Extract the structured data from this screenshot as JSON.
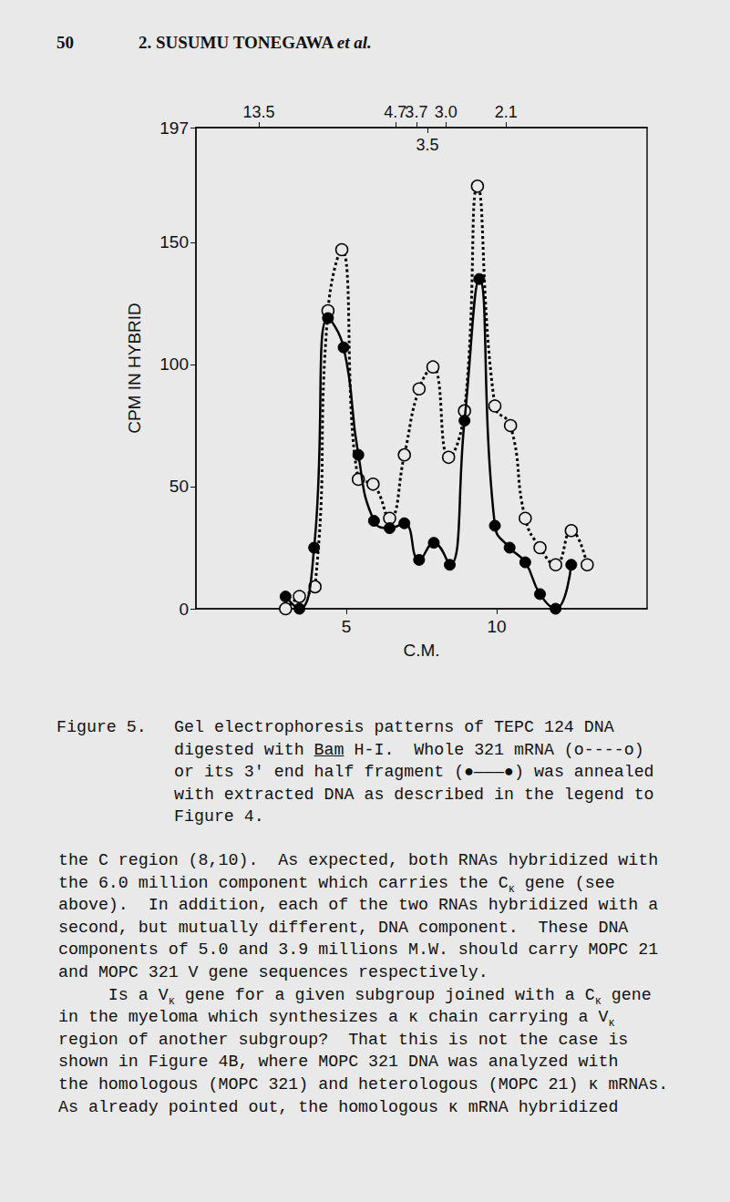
{
  "header": {
    "page": "50",
    "running_head": "2. SUSUMU TONEGAWA",
    "running_head_italic": "et al."
  },
  "chart_data": {
    "type": "line",
    "x_label": "C.M.",
    "y_label": "CPM IN HYBRID",
    "xlim": [
      0,
      15
    ],
    "xticks": [
      5,
      10
    ],
    "ylim": [
      0,
      197
    ],
    "yticks": [
      0,
      50,
      100,
      150
    ],
    "x2ticks": [
      {
        "value": 2.09,
        "label": "13.5"
      },
      {
        "value": 6.63,
        "label": "4.7"
      },
      {
        "value": 7.33,
        "label": "3.7"
      },
      {
        "value": 8.31,
        "label": "3.0"
      },
      {
        "value": 10.31,
        "label": "2.1"
      }
    ],
    "x2ticks_inner": [
      {
        "value": 7.7,
        "label": "3.5"
      }
    ],
    "grid": false,
    "series": [
      {
        "name": "Whole 321 mRNA",
        "color": "#000000",
        "marker": "open_circle",
        "line_style": "dotted",
        "x": [
          2.98,
          3.44,
          3.96,
          4.39,
          4.85,
          5.4,
          5.89,
          6.44,
          6.93,
          7.42,
          7.88,
          8.4,
          8.93,
          9.36,
          9.94,
          10.46,
          10.95,
          11.44,
          11.96,
          12.48,
          13.01
        ],
        "values": [
          0,
          5,
          9,
          122,
          147,
          53,
          51,
          37,
          63,
          90,
          99,
          62,
          81,
          173,
          83,
          75,
          37,
          25,
          18,
          32,
          18
        ]
      },
      {
        "name": "3' end half fragment",
        "color": "#000000",
        "marker": "filled_circle",
        "line_style": "solid",
        "x": [
          2.98,
          3.44,
          3.93,
          4.39,
          4.91,
          5.4,
          5.92,
          6.44,
          6.93,
          7.42,
          7.91,
          8.44,
          8.93,
          9.42,
          9.94,
          10.43,
          10.95,
          11.44,
          11.96,
          12.48
        ],
        "values": [
          5,
          0,
          25,
          119,
          107,
          63,
          36,
          33,
          35,
          20,
          27,
          18,
          77,
          135,
          34,
          25,
          19,
          6,
          0,
          18
        ]
      }
    ]
  },
  "caption": {
    "label": "Figure 5.",
    "lines": [
      [
        "Gel electrophoresis patterns of TEPC 124 DNA"
      ],
      [
        "digested with ",
        {
          "u": "Bam"
        },
        " H-I.  Whole 321 mRNA (o----o)"
      ],
      [
        "or its 3' end half fragment (●———●) was annealed"
      ],
      [
        "with extracted DNA as described in the legend to"
      ],
      [
        "Figure 4."
      ]
    ]
  },
  "body": {
    "lines": [
      [
        "the C region (8,10).  As expected, both RNAs hybridized with"
      ],
      [
        "the 6.0 million component which carries the C",
        {
          "sub": "κ"
        },
        " gene (see"
      ],
      [
        "above).  In addition, each of the two RNAs hybridized with a"
      ],
      [
        "second, but mutually different, DNA component.  These DNA"
      ],
      [
        "components of 5.0 and 3.9 millions M.W. should carry MOPC 21"
      ],
      [
        "and MOPC 321 V gene sequences respectively."
      ],
      [
        "     Is a V",
        {
          "sub": "κ"
        },
        " gene for a given subgroup joined with a C",
        {
          "sub": "κ"
        },
        " gene"
      ],
      [
        "in the myeloma which synthesizes a κ chain carrying a V",
        {
          "sub": "κ"
        }
      ],
      [
        "region of another subgroup?  That this is not the case is"
      ],
      [
        "shown in Figure 4B, where MOPC 321 DNA was analyzed with"
      ],
      [
        "the homologous (MOPC 321) and heterologous (MOPC 21) κ mRNAs."
      ],
      [
        "As already pointed out, the homologous κ mRNA hybridized"
      ]
    ]
  }
}
